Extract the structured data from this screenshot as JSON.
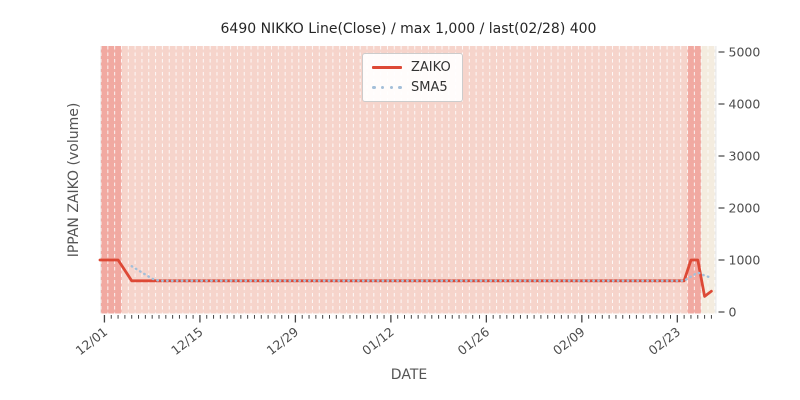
{
  "chart": {
    "title": "6490 NIKKO Line(Close) / max 1,000 / last(02/28) 400",
    "x_label": "DATE",
    "y_label": "IPPAN ZAIKO (volume)"
  },
  "legend": {
    "items": [
      {
        "label": "ZAIKO",
        "swatch": "solid-line",
        "color": "#dd4936"
      },
      {
        "label": "SMA5",
        "swatch": "dotted-line",
        "color": "#a3bfd9"
      }
    ]
  },
  "chart_data": {
    "type": "line",
    "title": "6490 NIKKO Line(Close) / max 1,000 / last(02/28) 400",
    "xlabel": "DATE",
    "ylabel": "IPPAN ZAIKO (volume)",
    "num_days": 90,
    "x_start_date": "12/01",
    "x_end_date": "02/28",
    "x_ticks": [
      {
        "index": 0,
        "label": "12/01"
      },
      {
        "index": 14,
        "label": "12/15"
      },
      {
        "index": 28,
        "label": "12/29"
      },
      {
        "index": 42,
        "label": "01/12"
      },
      {
        "index": 56,
        "label": "01/26"
      },
      {
        "index": 70,
        "label": "02/09"
      },
      {
        "index": 84,
        "label": "02/23"
      }
    ],
    "y_ticks": [
      0,
      1000,
      2000,
      3000,
      4000,
      5000
    ],
    "ylim": [
      0,
      5100
    ],
    "grid": "vertical-daily-white-dashed",
    "legend_position": "upper center",
    "max_value": 1000,
    "last_value": 400,
    "last_date": "02/28",
    "series": [
      {
        "name": "ZAIKO",
        "style": "solid",
        "color": "#dd4936",
        "values": [
          1000,
          1000,
          1000,
          800,
          600,
          600,
          600,
          600,
          600,
          600,
          600,
          600,
          600,
          600,
          600,
          600,
          600,
          600,
          600,
          600,
          600,
          600,
          600,
          600,
          600,
          600,
          600,
          600,
          600,
          600,
          600,
          600,
          600,
          600,
          600,
          600,
          600,
          600,
          600,
          600,
          600,
          600,
          600,
          600,
          600,
          600,
          600,
          600,
          600,
          600,
          600,
          600,
          600,
          600,
          600,
          600,
          600,
          600,
          600,
          600,
          600,
          600,
          600,
          600,
          600,
          600,
          600,
          600,
          600,
          600,
          600,
          600,
          600,
          600,
          600,
          600,
          600,
          600,
          600,
          600,
          600,
          600,
          600,
          600,
          600,
          600,
          1000,
          1000,
          300,
          400
        ]
      },
      {
        "name": "SMA5",
        "style": "dotted",
        "color": "#a3bfd9",
        "values": [
          null,
          null,
          null,
          null,
          880,
          800,
          720,
          640,
          600,
          600,
          600,
          600,
          600,
          600,
          600,
          600,
          600,
          600,
          600,
          600,
          600,
          600,
          600,
          600,
          600,
          600,
          600,
          600,
          600,
          600,
          600,
          600,
          600,
          600,
          600,
          600,
          600,
          600,
          600,
          600,
          600,
          600,
          600,
          600,
          600,
          600,
          600,
          600,
          600,
          600,
          600,
          600,
          600,
          600,
          600,
          600,
          600,
          600,
          600,
          600,
          600,
          600,
          600,
          600,
          600,
          600,
          600,
          600,
          600,
          600,
          600,
          600,
          600,
          600,
          600,
          600,
          600,
          600,
          600,
          600,
          600,
          600,
          600,
          600,
          600,
          600,
          680,
          760,
          700,
          660
        ]
      }
    ],
    "background": {
      "plot_bg_color": "#e9e9ea",
      "band_high_color": "#f1a9a1",
      "band_mid_color": "#f6d4cb",
      "band_low_color": "#f4ecdf",
      "band_high_threshold": 1000,
      "band_low_threshold": 450,
      "gridline_color": "#ffffff"
    },
    "axis": {
      "tick_color": "#444444",
      "tick_label_color": "#4d4d4d"
    }
  }
}
